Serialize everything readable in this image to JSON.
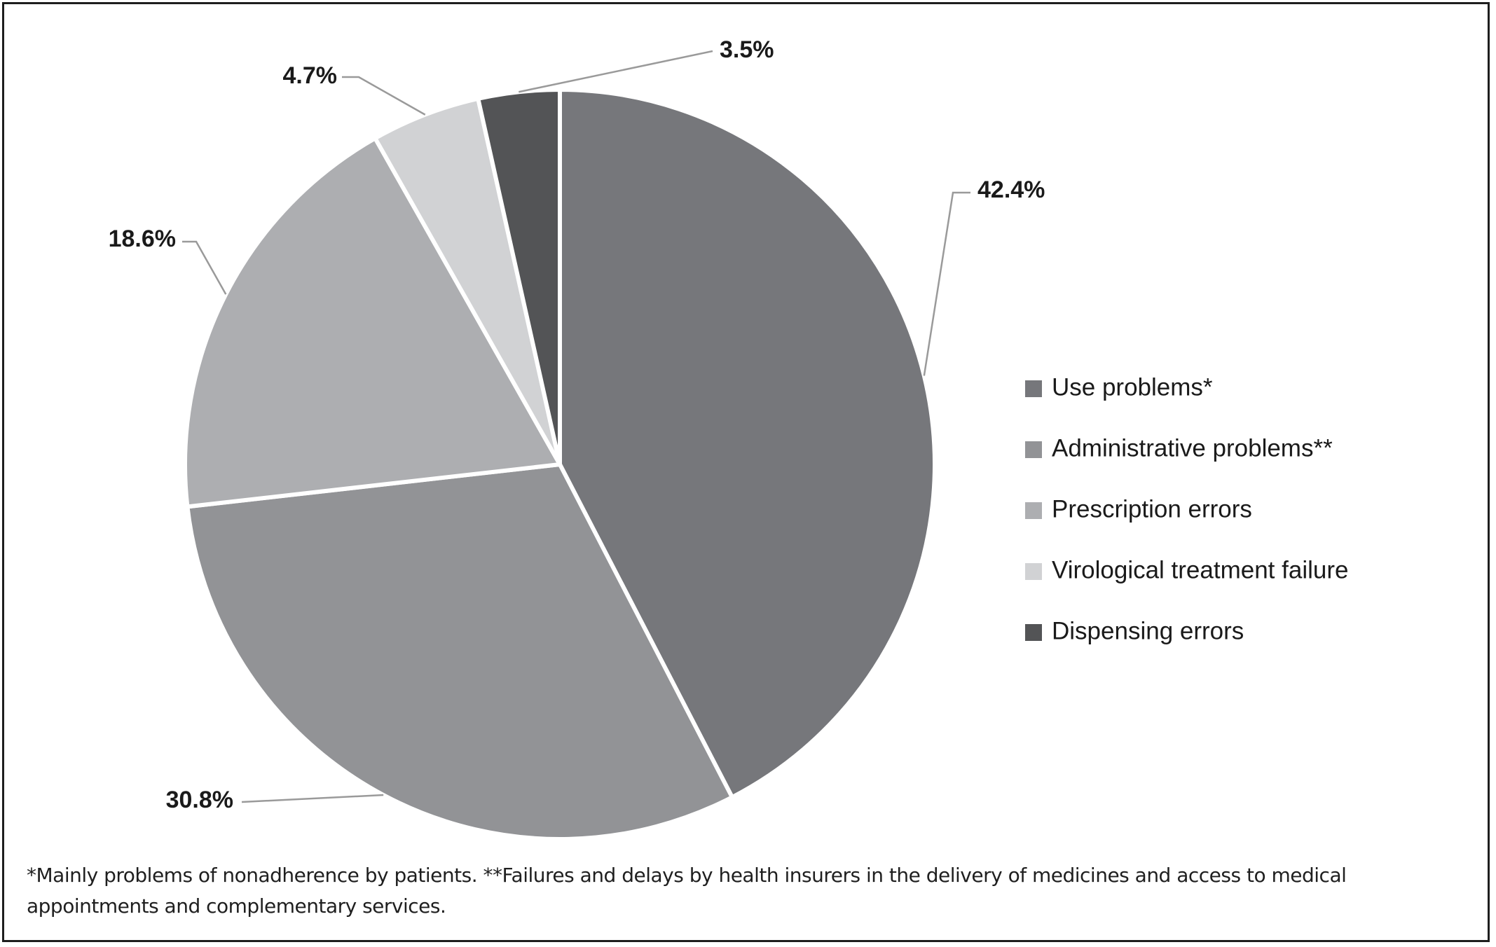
{
  "chart_data": {
    "type": "pie",
    "slices": [
      {
        "label": "Use problems*",
        "value": 42.4,
        "value_label": "42.4%",
        "color": "#76777b"
      },
      {
        "label": "Administrative problems**",
        "value": 30.8,
        "value_label": "30.8%",
        "color": "#929396"
      },
      {
        "label": "Prescription errors",
        "value": 18.6,
        "value_label": "18.6%",
        "color": "#adaeb1"
      },
      {
        "label": "Virological treatment failure",
        "value": 4.7,
        "value_label": "4.7%",
        "color": "#d1d2d4"
      },
      {
        "label": "Dispensing errors",
        "value": 3.5,
        "value_label": "3.5%",
        "color": "#535456"
      }
    ],
    "legend_position": "right"
  },
  "footnote": "*Mainly problems of nonadherence by patients. **Failures and delays by health insurers in the delivery of medicines and access to medical appointments and complementary services."
}
